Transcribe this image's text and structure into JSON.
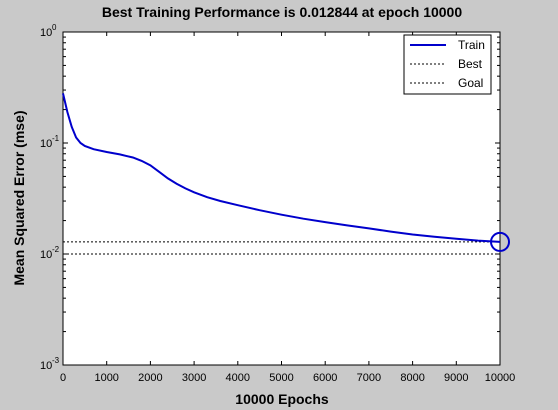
{
  "chart_data": {
    "type": "line",
    "title": "Best Training Performance is 0.012844 at epoch 10000",
    "xlabel": "10000 Epochs",
    "ylabel": "Mean Squared Error  (mse)",
    "x_ticks": [
      "0",
      "1000",
      "2000",
      "3000",
      "4000",
      "5000",
      "6000",
      "7000",
      "8000",
      "9000",
      "10000"
    ],
    "y_ticks": [
      {
        "base": "10",
        "exp": "0"
      },
      {
        "base": "10",
        "exp": "-1"
      },
      {
        "base": "10",
        "exp": "-2"
      },
      {
        "base": "10",
        "exp": "-3"
      }
    ],
    "xlim": [
      0,
      10000
    ],
    "ylim": [
      0.001,
      1
    ],
    "yscale": "log",
    "grid": false,
    "legend_position": "top-right",
    "series": [
      {
        "name": "Train",
        "color": "#0000cc",
        "style": "solid",
        "x": [
          0,
          100,
          200,
          300,
          400,
          500,
          700,
          1000,
          1300,
          1600,
          1800,
          2000,
          2200,
          2400,
          2600,
          2800,
          3000,
          3300,
          3600,
          4000,
          4500,
          5000,
          5500,
          6000,
          6500,
          7000,
          7500,
          8000,
          8500,
          9000,
          9500,
          10000
        ],
        "y": [
          0.28,
          0.19,
          0.14,
          0.112,
          0.1,
          0.094,
          0.088,
          0.083,
          0.079,
          0.074,
          0.069,
          0.063,
          0.055,
          0.048,
          0.043,
          0.039,
          0.036,
          0.0325,
          0.03,
          0.0275,
          0.0248,
          0.0226,
          0.0208,
          0.0194,
          0.0181,
          0.017,
          0.0159,
          0.015,
          0.0143,
          0.0137,
          0.0132,
          0.012844
        ]
      },
      {
        "name": "Best",
        "color": "#000000",
        "style": "dotted",
        "best_epoch": 10000,
        "best_value": 0.012844
      },
      {
        "name": "Goal",
        "color": "#000000",
        "style": "dotted",
        "value": 0.01
      }
    ]
  }
}
